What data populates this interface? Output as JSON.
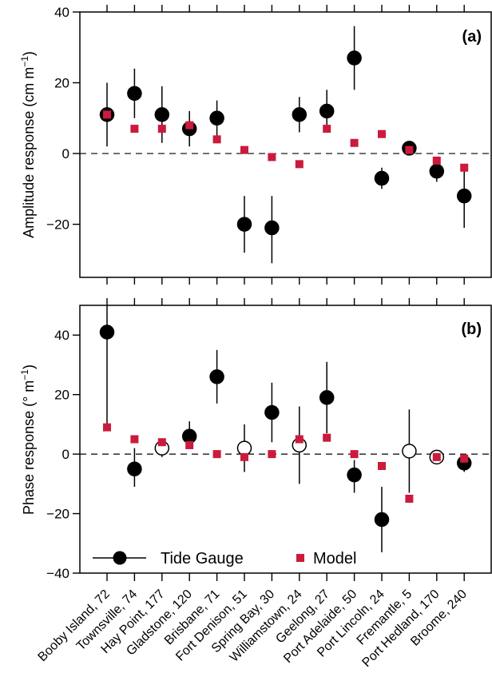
{
  "categories": [
    "Booby Island,  72",
    "Townsville,  74",
    "Hay Point, 177",
    "Gladstone, 120",
    "Brisbane,  71",
    "Fort Denison,  51",
    "Spring Bay,  30",
    "Williamstown,  24",
    "Geelong,  27",
    "Port Adelaide,  50",
    "Port Lincoln,  24",
    "Fremantle,  5",
    "Port Hedland, 170",
    "Broome, 240"
  ],
  "colors": {
    "model": "#cc1a3d",
    "gauge": "#000000"
  },
  "legend": {
    "gauge_label": "Tide Gauge",
    "model_label": "Model"
  },
  "chart_data": [
    {
      "type": "scatter",
      "panel": "(a)",
      "ylabel_main": "Amplitude response (cm m",
      "ylabel_sup": "−1",
      "ylabel_end": ")",
      "ylim": [
        -35,
        40
      ],
      "yticks": [
        -20,
        0,
        20,
        40
      ],
      "ytick_labels": [
        "−20",
        "0",
        "20",
        "40"
      ],
      "zero_line": "dashed",
      "gauge": {
        "values": [
          11,
          17,
          11,
          7,
          10,
          -20,
          -21,
          11,
          12,
          27,
          -7,
          1.5,
          -5,
          -12
        ],
        "lower": [
          2,
          10,
          3,
          2,
          5,
          -28,
          -31,
          6,
          6,
          18,
          -10,
          1,
          -8,
          -21
        ],
        "upper": [
          20,
          24,
          19,
          12,
          15,
          -12,
          -12,
          16,
          18,
          36,
          -4,
          2,
          -2,
          -4
        ],
        "filled": [
          true,
          true,
          true,
          true,
          true,
          true,
          true,
          true,
          true,
          true,
          true,
          true,
          true,
          true
        ]
      },
      "model": {
        "values": [
          11,
          7,
          7,
          8,
          4,
          1,
          -1,
          -3,
          7,
          3,
          5.5,
          1,
          -2,
          -4
        ]
      }
    },
    {
      "type": "scatter",
      "panel": "(b)",
      "ylabel_main": "Phase response (° m",
      "ylabel_sup": "−1",
      "ylabel_end": ")",
      "ylim": [
        -40,
        50
      ],
      "yticks": [
        -40,
        -20,
        0,
        20,
        40
      ],
      "ytick_labels": [
        "−40",
        "−20",
        "0",
        "20",
        "40"
      ],
      "zero_line": "dashed",
      "gauge": {
        "values": [
          41,
          -5,
          2,
          6,
          26,
          2,
          14,
          3,
          19,
          -7,
          -22,
          1,
          -1,
          -3
        ],
        "lower": [
          8,
          -11,
          -1,
          2,
          17,
          -6,
          4,
          -10,
          7,
          -13,
          -33,
          -13,
          -2,
          -6
        ],
        "upper": [
          55,
          2,
          5,
          11,
          35,
          10,
          24,
          16,
          31,
          -2,
          -11,
          15,
          0,
          -1
        ],
        "filled": [
          true,
          true,
          false,
          true,
          true,
          false,
          true,
          false,
          true,
          true,
          true,
          false,
          false,
          true
        ]
      },
      "model": {
        "values": [
          9,
          5,
          4,
          3,
          0,
          -1,
          0,
          5,
          5.5,
          0,
          -4,
          -15,
          -1,
          -1.5
        ]
      }
    }
  ]
}
